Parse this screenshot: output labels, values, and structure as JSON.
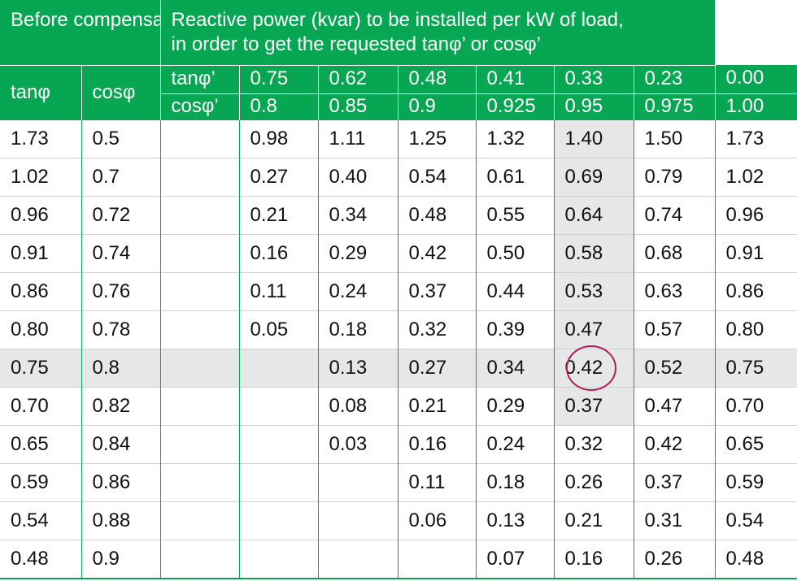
{
  "header": {
    "before_label": "Before compensation",
    "reactive_label_line1": "Reactive power (kvar) to be installed per kW of load,",
    "reactive_label_line2": "in order to get the requested tanφ’ or cosφ’",
    "tan_label": "tanφ",
    "cos_label": "cosφ",
    "tanp_label": "tanφ’",
    "cosp_label": "cosφ’",
    "target_tan": [
      "0.75",
      "0.62",
      "0.48",
      "0.41",
      "0.33",
      "0.23",
      "0.00"
    ],
    "target_cos": [
      "0.8",
      "0.85",
      "0.9",
      "0.925",
      "0.95",
      "0.975",
      "1.00"
    ]
  },
  "rows": [
    {
      "tan": "1.73",
      "cos": "0.5",
      "v": [
        "0.98",
        "1.11",
        "1.25",
        "1.32",
        "1.40",
        "1.50",
        "1.73"
      ]
    },
    {
      "tan": "1.02",
      "cos": "0.7",
      "v": [
        "0.27",
        "0.40",
        "0.54",
        "0.61",
        "0.69",
        "0.79",
        "1.02"
      ]
    },
    {
      "tan": "0.96",
      "cos": "0.72",
      "v": [
        "0.21",
        "0.34",
        "0.48",
        "0.55",
        "0.64",
        "0.74",
        "0.96"
      ]
    },
    {
      "tan": "0.91",
      "cos": "0.74",
      "v": [
        "0.16",
        "0.29",
        "0.42",
        "0.50",
        "0.58",
        "0.68",
        "0.91"
      ]
    },
    {
      "tan": "0.86",
      "cos": "0.76",
      "v": [
        "0.11",
        "0.24",
        "0.37",
        "0.44",
        "0.53",
        "0.63",
        "0.86"
      ]
    },
    {
      "tan": "0.80",
      "cos": "0.78",
      "v": [
        "0.05",
        "0.18",
        "0.32",
        "0.39",
        "0.47",
        "0.57",
        "0.80"
      ]
    },
    {
      "tan": "0.75",
      "cos": "0.8",
      "v": [
        "",
        "0.13",
        "0.27",
        "0.34",
        "0.42",
        "0.52",
        "0.75"
      ]
    },
    {
      "tan": "0.70",
      "cos": "0.82",
      "v": [
        "",
        "0.08",
        "0.21",
        "0.29",
        "0.37",
        "0.47",
        "0.70"
      ]
    },
    {
      "tan": "0.65",
      "cos": "0.84",
      "v": [
        "",
        "0.03",
        "0.16",
        "0.24",
        "0.32",
        "0.42",
        "0.65"
      ]
    },
    {
      "tan": "0.59",
      "cos": "0.86",
      "v": [
        "",
        "",
        "0.11",
        "0.18",
        "0.26",
        "0.37",
        "0.59"
      ]
    },
    {
      "tan": "0.54",
      "cos": "0.88",
      "v": [
        "",
        "",
        "0.06",
        "0.13",
        "0.21",
        "0.31",
        "0.54"
      ]
    },
    {
      "tan": "0.48",
      "cos": "0.9",
      "v": [
        "",
        "",
        "",
        "0.07",
        "0.16",
        "0.26",
        "0.48"
      ]
    }
  ],
  "highlight": {
    "row_index": 6,
    "column_index": 4,
    "column_shaded_rows": 8,
    "row_color": "#e6e7e8",
    "circle_color": "#b01e55",
    "header_color": "#07a653"
  }
}
